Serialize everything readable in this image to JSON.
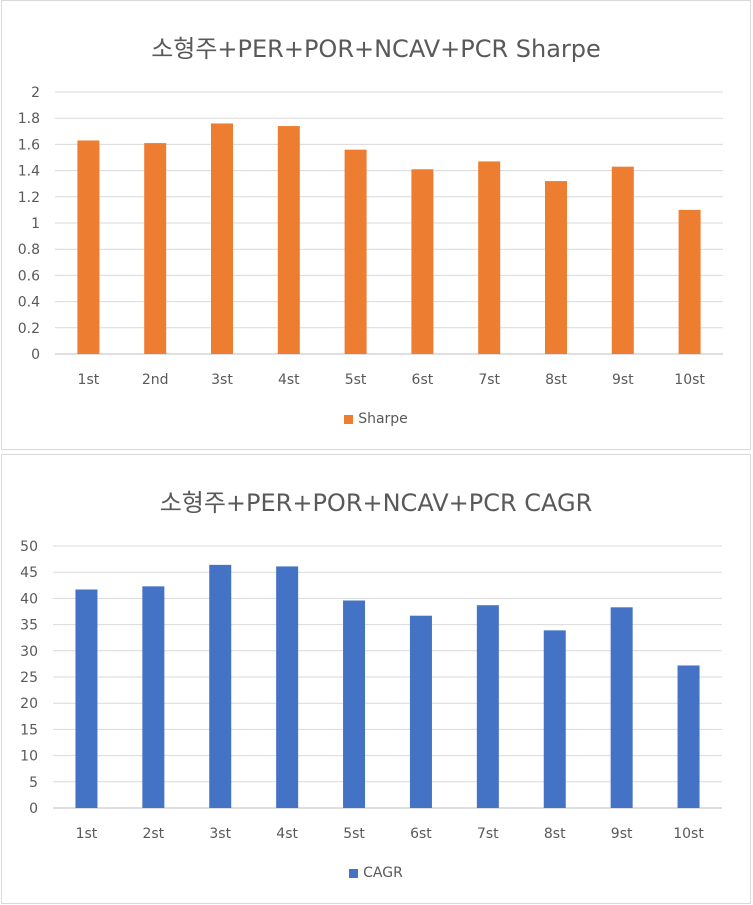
{
  "chart_data": [
    {
      "type": "bar",
      "title": "소형주+PER+POR+NCAV+PCR Sharpe",
      "categories": [
        "1st",
        "2nd",
        "3st",
        "4st",
        "5st",
        "6st",
        "7st",
        "8st",
        "9st",
        "10st"
      ],
      "series": [
        {
          "name": "Sharpe",
          "color": "#ed7d31",
          "values": [
            1.63,
            1.61,
            1.76,
            1.74,
            1.56,
            1.41,
            1.47,
            1.32,
            1.43,
            1.1
          ]
        }
      ],
      "yticks": [
        "0",
        "0.2",
        "0.4",
        "0.6",
        "0.8",
        "1",
        "1.2",
        "1.4",
        "1.6",
        "1.8",
        "2"
      ],
      "ylim": [
        0,
        2
      ],
      "grid": true,
      "legend_position": "bottom"
    },
    {
      "type": "bar",
      "title": "소형주+PER+POR+NCAV+PCR CAGR",
      "categories": [
        "1st",
        "2st",
        "3st",
        "4st",
        "5st",
        "6st",
        "7st",
        "8st",
        "9st",
        "10st"
      ],
      "series": [
        {
          "name": "CAGR",
          "color": "#4472c4",
          "values": [
            41.7,
            42.3,
            46.4,
            46.1,
            39.6,
            36.7,
            38.7,
            33.9,
            38.3,
            27.2
          ]
        }
      ],
      "yticks": [
        "0",
        "5",
        "10",
        "15",
        "20",
        "25",
        "30",
        "35",
        "40",
        "45",
        "50"
      ],
      "ylim": [
        0,
        50
      ],
      "grid": true,
      "legend_position": "bottom"
    }
  ]
}
